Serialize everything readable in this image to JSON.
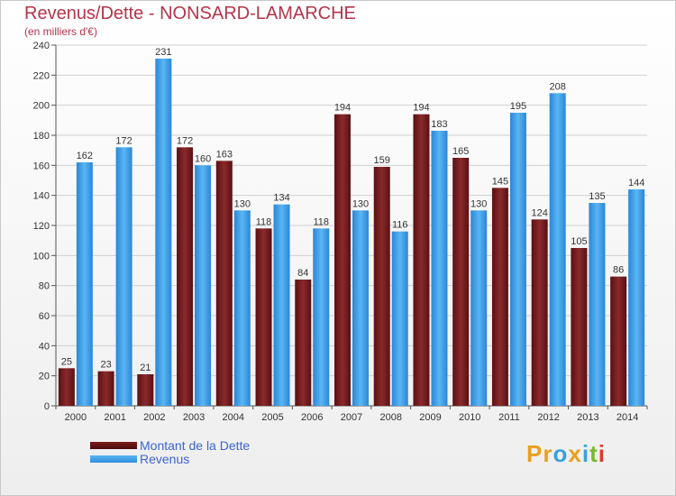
{
  "title": "Revenus/Dette - NONSARD-LAMARCHE",
  "subtitle": "(en milliers d'€)",
  "logo": {
    "text": "Proxiti",
    "letters": [
      "P",
      "r",
      "o",
      "x",
      "i",
      "t",
      "i"
    ]
  },
  "colors": {
    "title": "#b5344b",
    "dette": "#7a1c1e",
    "revenus": "#2e8fe0",
    "legend_text": "#3b64d6",
    "grid": "#d0d0d0",
    "logo": [
      "#e8a020",
      "#e8a020",
      "#3aa0dc",
      "#e8a020",
      "#3aa0dc",
      "#7ab82e",
      "#e03a2e"
    ]
  },
  "legend": {
    "items": [
      {
        "label": "Montant de la Dette",
        "color_key": "dette"
      },
      {
        "label": "Revenus",
        "color_key": "revenus"
      }
    ]
  },
  "chart_data": {
    "type": "bar",
    "title": "Revenus/Dette - NONSARD-LAMARCHE",
    "subtitle": "(en milliers d'€)",
    "categories": [
      "2000",
      "2001",
      "2002",
      "2003",
      "2004",
      "2005",
      "2006",
      "2007",
      "2008",
      "2009",
      "2010",
      "2011",
      "2012",
      "2013",
      "2014"
    ],
    "series": [
      {
        "name": "Montant de la Dette",
        "values": [
          25,
          23,
          21,
          172,
          163,
          118,
          84,
          194,
          159,
          194,
          165,
          145,
          124,
          105,
          86
        ]
      },
      {
        "name": "Revenus",
        "values": [
          162,
          172,
          231,
          160,
          130,
          134,
          118,
          130,
          116,
          183,
          130,
          195,
          208,
          135,
          144
        ]
      }
    ],
    "ylim": [
      0,
      240
    ],
    "yticks": [
      0,
      20,
      40,
      60,
      80,
      100,
      120,
      140,
      160,
      180,
      200,
      220,
      240
    ],
    "grid": true,
    "legend_position": "bottom-left"
  }
}
